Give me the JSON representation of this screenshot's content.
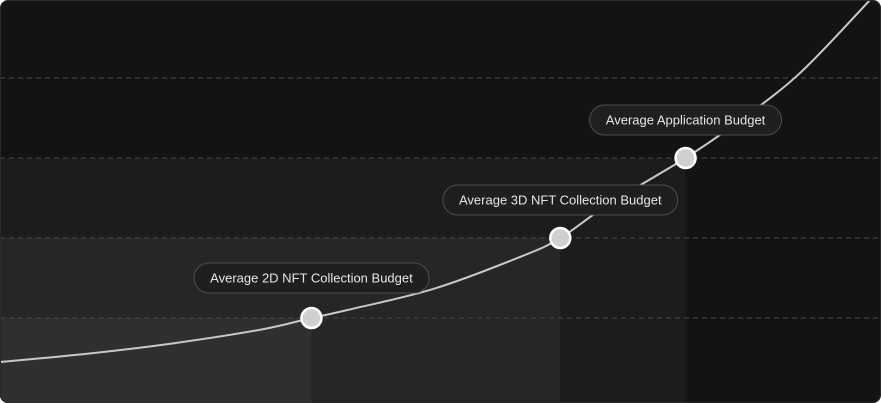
{
  "colors": {
    "background": "#131313",
    "curve": "#c8c8c8",
    "gridline": "#4a4a4a",
    "marker_fill": "#d0d0d0",
    "marker_stroke": "#ffffff",
    "label_bg": "#1f1f1f",
    "label_border": "#4e4e4e",
    "label_text": "#e6e6e6"
  },
  "chart_data": {
    "type": "line",
    "title": "",
    "xlabel": "",
    "ylabel": "",
    "grid": true,
    "curve_shape": "exponential",
    "series": [
      {
        "values": [
          {
            "x": 0,
            "y": 0.5
          },
          {
            "x": 10,
            "y": 1.06
          },
          {
            "x": 20,
            "y": 1.78
          },
          {
            "x": 30,
            "y": 2.71
          },
          {
            "x": 35.8,
            "y": 3.5
          },
          {
            "x": 40,
            "y": 4.21
          },
          {
            "x": 50,
            "y": 6.09
          },
          {
            "x": 60,
            "y": 8.91
          },
          {
            "x": 64.4,
            "y": 10.5
          },
          {
            "x": 70,
            "y": 13.05
          },
          {
            "x": 78.8,
            "y": 16.5
          },
          {
            "x": 85,
            "y": 21.2
          },
          {
            "x": 92,
            "y": 27.3
          },
          {
            "x": 100,
            "y": 36.5
          }
        ]
      }
    ],
    "markers": [
      {
        "label": "Average 2D NFT Collection Budget",
        "x": 35.8,
        "y": 3.5
      },
      {
        "label": "Average 3D NFT Collection Budget",
        "x": 64.4,
        "y": 10.5
      },
      {
        "label": "Average Application Budget",
        "x": 78.8,
        "y": 16.5
      }
    ]
  }
}
